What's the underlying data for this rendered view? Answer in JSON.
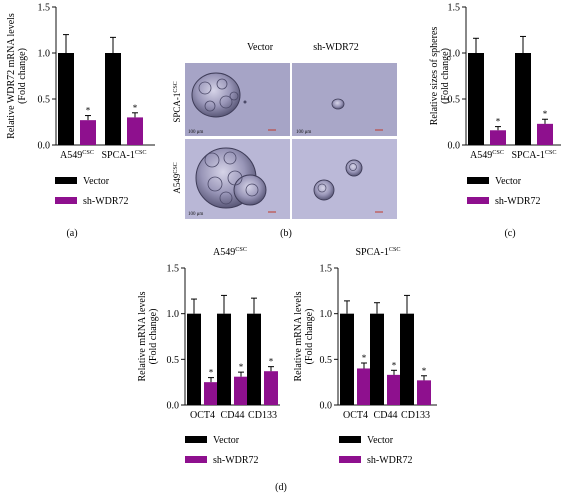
{
  "colors": {
    "vector": "#000000",
    "sh": "#8e108e",
    "axis": "#111111",
    "micro_bg": "#a8a6c8",
    "scale_bar": "#c0392b"
  },
  "legend": {
    "vector_label": "Vector",
    "sh_label": "sh-WDR72"
  },
  "panel_labels": {
    "a": "(a)",
    "b": "(b)",
    "c": "(c)",
    "d": "(d)"
  },
  "micrograph": {
    "col_vector": "Vector",
    "col_sh": "sh-WDR72",
    "row1_base": "SPCA-1",
    "row1_sup": "CSC",
    "row2_base": "A549",
    "row2_sup": "CSC",
    "scale_label": "100 μm"
  },
  "chart_data": [
    {
      "id": "a",
      "type": "bar",
      "ylabel": [
        "Relative WDR72 mRNA levels",
        "(Fold change)"
      ],
      "categories": [
        {
          "base": "A549",
          "sup": "CSC"
        },
        {
          "base": "SPCA-1",
          "sup": "CSC"
        }
      ],
      "ylim": [
        0,
        1.5
      ],
      "yticks": [
        "0.0",
        "0.5",
        "1.0",
        "1.5"
      ],
      "series": [
        {
          "name": "Vector",
          "values": [
            1.0,
            1.0
          ],
          "errors": [
            0.2,
            0.17
          ]
        },
        {
          "name": "sh-WDR72",
          "values": [
            0.27,
            0.3
          ],
          "errors": [
            0.05,
            0.05
          ],
          "sig": [
            "*",
            "*"
          ]
        }
      ]
    },
    {
      "id": "c",
      "type": "bar",
      "ylabel": [
        "Relative sizes of spheres",
        "(Fold change)"
      ],
      "categories": [
        {
          "base": "A549",
          "sup": "CSC"
        },
        {
          "base": "SPCA-1",
          "sup": "CSC"
        }
      ],
      "ylim": [
        0,
        1.5
      ],
      "yticks": [
        "0.0",
        "0.5",
        "1.0",
        "1.5"
      ],
      "series": [
        {
          "name": "Vector",
          "values": [
            1.0,
            1.0
          ],
          "errors": [
            0.16,
            0.18
          ]
        },
        {
          "name": "sh-WDR72",
          "values": [
            0.16,
            0.23
          ],
          "errors": [
            0.04,
            0.05
          ],
          "sig": [
            "*",
            "*"
          ]
        }
      ]
    },
    {
      "id": "d1",
      "type": "bar",
      "title": {
        "base": "A549",
        "sup": "CSC"
      },
      "ylabel": [
        "Relative mRNA levels",
        "(Fold change)"
      ],
      "categories": [
        {
          "base": "OCT4",
          "sup": ""
        },
        {
          "base": "CD44",
          "sup": ""
        },
        {
          "base": "CD133",
          "sup": ""
        }
      ],
      "ylim": [
        0,
        1.5
      ],
      "yticks": [
        "0.0",
        "0.5",
        "1.0",
        "1.5"
      ],
      "series": [
        {
          "name": "Vector",
          "values": [
            1.0,
            1.0,
            1.0
          ],
          "errors": [
            0.16,
            0.2,
            0.17
          ]
        },
        {
          "name": "sh-WDR72",
          "values": [
            0.25,
            0.31,
            0.37
          ],
          "errors": [
            0.05,
            0.05,
            0.05
          ],
          "sig": [
            "*",
            "*",
            "*"
          ]
        }
      ]
    },
    {
      "id": "d2",
      "type": "bar",
      "title": {
        "base": "SPCA-1",
        "sup": "CSC"
      },
      "ylabel": [
        "Relative mRNA levels",
        "(Fold change)"
      ],
      "categories": [
        {
          "base": "OCT4",
          "sup": ""
        },
        {
          "base": "CD44",
          "sup": ""
        },
        {
          "base": "CD133",
          "sup": ""
        }
      ],
      "ylim": [
        0,
        1.5
      ],
      "yticks": [
        "0.0",
        "0.5",
        "1.0",
        "1.5"
      ],
      "series": [
        {
          "name": "Vector",
          "values": [
            1.0,
            1.0,
            1.0
          ],
          "errors": [
            0.14,
            0.12,
            0.2
          ]
        },
        {
          "name": "sh-WDR72",
          "values": [
            0.4,
            0.33,
            0.27
          ],
          "errors": [
            0.06,
            0.05,
            0.05
          ],
          "sig": [
            "*",
            "*",
            "*"
          ]
        }
      ]
    }
  ]
}
